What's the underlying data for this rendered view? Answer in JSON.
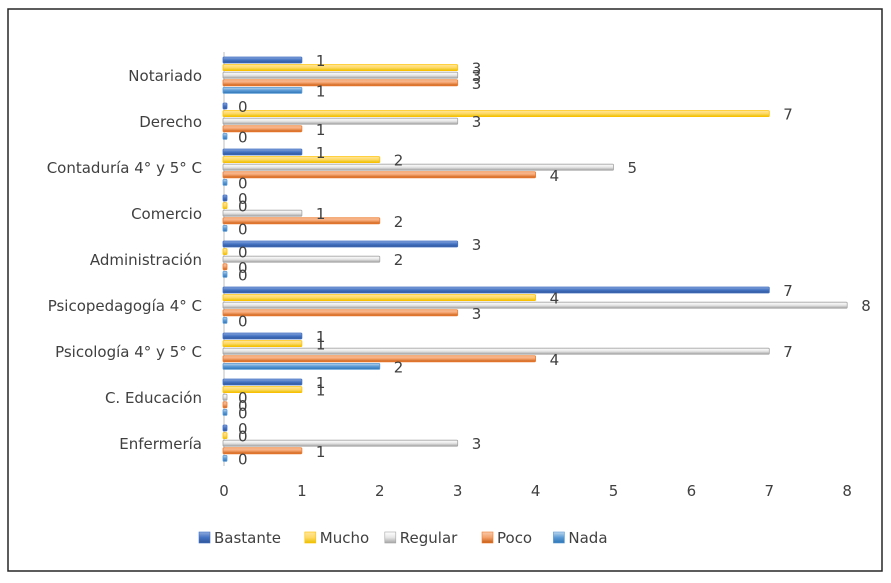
{
  "chart_data": {
    "type": "bar",
    "orientation": "horizontal",
    "title": "",
    "xlabel": "",
    "ylabel": "",
    "xlim": [
      0,
      8
    ],
    "x_ticks": [
      "0",
      "1",
      "2",
      "3",
      "4",
      "5",
      "6",
      "7",
      "8"
    ],
    "grid": false,
    "legend_position": "bottom",
    "categories": [
      "Notariado",
      "Derecho",
      "Contaduría 4° y 5° C",
      "Comercio",
      "Administración",
      "Psicopedagogía 4° C",
      "Psicología 4° y 5° C",
      "C. Educación",
      "Enfermería"
    ],
    "series": [
      {
        "name": "Bastante",
        "color": "#4472C4",
        "values": [
          1,
          0,
          1,
          0,
          3,
          7,
          1,
          1,
          0
        ]
      },
      {
        "name": "Mucho",
        "color": "#FFC000",
        "values": [
          3,
          7,
          2,
          0,
          0,
          4,
          1,
          1,
          0
        ]
      },
      {
        "name": "Regular",
        "color": "#A5A5A5",
        "values": [
          3,
          3,
          5,
          1,
          2,
          8,
          7,
          0,
          3
        ]
      },
      {
        "name": "Poco",
        "color": "#ED7D31",
        "values": [
          3,
          1,
          4,
          2,
          0,
          3,
          4,
          0,
          1
        ]
      },
      {
        "name": "Nada",
        "color": "#5B9BD5",
        "values": [
          1,
          0,
          0,
          0,
          0,
          0,
          2,
          0,
          0
        ]
      }
    ]
  }
}
